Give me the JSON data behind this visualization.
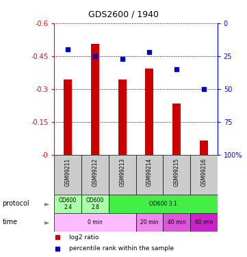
{
  "title": "GDS2600 / 1940",
  "samples": [
    "GSM99211",
    "GSM99212",
    "GSM99213",
    "GSM99214",
    "GSM99215",
    "GSM99216"
  ],
  "log2_ratio": [
    -0.345,
    -0.505,
    -0.345,
    -0.395,
    -0.235,
    -0.065
  ],
  "percentile_rank": [
    20,
    25,
    27,
    22,
    35,
    50
  ],
  "ylim_left": [
    0.0,
    -0.6
  ],
  "ylim_right": [
    100,
    0
  ],
  "yticks_left": [
    0.0,
    -0.15,
    -0.3,
    -0.45,
    -0.6
  ],
  "ytick_labels_left": [
    "-0",
    "-0.15",
    "-0.3",
    "-0.45",
    "-0.6"
  ],
  "yticks_right": [
    100,
    75,
    50,
    25,
    0
  ],
  "ytick_labels_right": [
    "100%",
    "75",
    "50",
    "25",
    "0"
  ],
  "bar_color": "#cc0000",
  "percentile_color": "#0000cc",
  "protocol_data": [
    {
      "label": "OD600\n2.4",
      "start": 0,
      "end": 1,
      "color": "#aaffaa"
    },
    {
      "label": "OD600\n2.8",
      "start": 1,
      "end": 2,
      "color": "#aaffaa"
    },
    {
      "label": "OD600 3.1",
      "start": 2,
      "end": 6,
      "color": "#44ee44"
    }
  ],
  "time_data": [
    {
      "label": "0 min",
      "start": 0,
      "end": 3,
      "color": "#ffbbff"
    },
    {
      "label": "20 min",
      "start": 3,
      "end": 4,
      "color": "#ee88ee"
    },
    {
      "label": "40 min",
      "start": 4,
      "end": 5,
      "color": "#dd55dd"
    },
    {
      "label": "60 min",
      "start": 5,
      "end": 6,
      "color": "#cc22cc"
    }
  ],
  "sample_bg_color": "#cccccc",
  "bar_width": 0.3,
  "n_samples": 6
}
